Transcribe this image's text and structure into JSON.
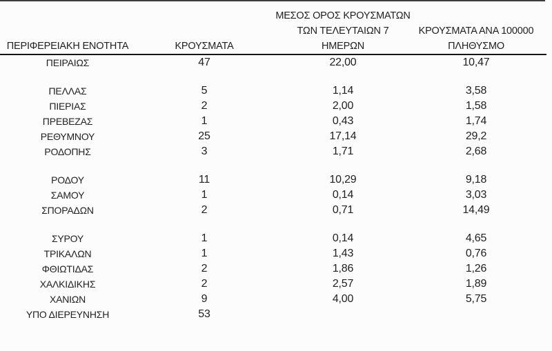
{
  "style": {
    "text_color": "#212121",
    "rule_color": "#3b3b3b",
    "header_underline_color": "#161616"
  },
  "table": {
    "headers": {
      "region": "ΠΕΡΙΦΕΡΕΙΑΚΗ ΕΝΟΤΗΤΑ",
      "cases": "ΚΡΟΥΣΜΑΤΑ",
      "avg7_lines": [
        "ΜΕΣΟΣ ΟΡΟΣ ΚΡΟΥΣΜΑΤΩΝ",
        "ΤΩΝ ΤΕΛΕΥΤΑΙΩΝ 7",
        "ΗΜΕΡΩΝ"
      ],
      "per100k_lines": [
        "ΚΡΟΥΣΜΑΤΑ ΑΝΑ 100000",
        "ΠΛΗΘΥΣΜΟ"
      ]
    },
    "groups": [
      {
        "rows": [
          [
            "ΠΕΙΡΑΙΩΣ",
            "47",
            "22,00",
            "10,47"
          ]
        ]
      },
      {
        "rows": [
          [
            "ΠΕΛΛΑΣ",
            "5",
            "1,14",
            "3,58"
          ],
          [
            "ΠΙΕΡΙΑΣ",
            "2",
            "2,00",
            "1,58"
          ],
          [
            "ΠΡΕΒΕΖΑΣ",
            "1",
            "0,43",
            "1,74"
          ],
          [
            "ΡΕΘΥΜΝΟΥ",
            "25",
            "17,14",
            "29,2"
          ],
          [
            "ΡΟΔΟΠΗΣ",
            "3",
            "1,71",
            "2,68"
          ]
        ]
      },
      {
        "rows": [
          [
            "ΡΟΔΟΥ",
            "11",
            "10,29",
            "9,18"
          ],
          [
            "ΣΑΜΟΥ",
            "1",
            "0,14",
            "3,03"
          ],
          [
            "ΣΠΟΡΑΔΩΝ",
            "2",
            "0,71",
            "14,49"
          ]
        ]
      },
      {
        "rows": [
          [
            "ΣΥΡΟΥ",
            "1",
            "0,14",
            "4,65"
          ],
          [
            "ΤΡΙΚΑΛΩΝ",
            "1",
            "1,43",
            "0,76"
          ],
          [
            "ΦΘΙΩΤΙΔΑΣ",
            "2",
            "1,86",
            "1,26"
          ],
          [
            "ΧΑΛΚΙΔΙΚΗΣ",
            "2",
            "2,57",
            "1,89"
          ],
          [
            "ΧΑΝΙΩΝ",
            "9",
            "4,00",
            "5,75"
          ],
          [
            "ΥΠΟ ΔΙΕΡΕΥΝΗΣΗ",
            "53",
            "",
            ""
          ]
        ]
      }
    ]
  }
}
